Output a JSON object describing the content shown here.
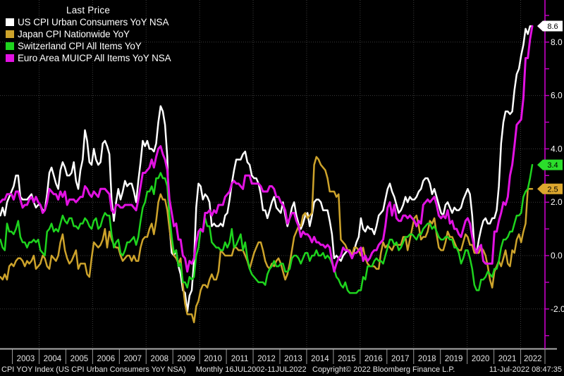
{
  "legend": {
    "title": "Last Price"
  },
  "footer": {
    "index_text": "CPI YOY Index (US CPI Urban Consumers YoY NSA)",
    "period_text": "Monthly 16JUL2002-11JUL2022",
    "copyright": "Copyright© 2022 Bloomberg Finance L.P.",
    "timestamp": "11-Jul-2022 08:47:35"
  },
  "chart_data": {
    "type": "line",
    "frequency": "monthly",
    "x_start": "2002-07",
    "x_end": "2022-06",
    "x_year_labels": [
      "2003",
      "2004",
      "2005",
      "2006",
      "2007",
      "2008",
      "2009",
      "2010",
      "2011",
      "2012",
      "2013",
      "2014",
      "2015",
      "2016",
      "2017",
      "2018",
      "2019",
      "2020",
      "2021",
      "2022"
    ],
    "y_axis": {
      "major_ticks": [
        8,
        6,
        4,
        2,
        0,
        -2
      ],
      "major_labels": [
        "8.0",
        "6.0",
        "4.0",
        "2.0",
        "0.0",
        "-2.0"
      ],
      "minor_tick_values": [
        9,
        8,
        7,
        6,
        5,
        4,
        3,
        2,
        1,
        0,
        -1,
        -2,
        -3
      ],
      "axis_color": "#C800C8",
      "label_color": "#ffffff"
    },
    "grid": {
      "on": true,
      "color": "#3c3c3c",
      "h_lines_at": [
        8,
        6,
        4,
        2,
        0,
        -2
      ],
      "v_lines_every_years": 2
    },
    "ylim": [
      -3.3,
      9.6
    ],
    "axis_badges": [
      {
        "value": 8.6,
        "label": "8.6",
        "fill": "#E212E2",
        "text_color": "#000000",
        "note": "euro-area-badge-hidden-behind-us-badge"
      },
      {
        "value": 8.6,
        "label": "8.6",
        "fill": "#FFFFFF",
        "text_color": "#000000"
      },
      {
        "value": 3.4,
        "label": "3.4",
        "fill": "#2BDD2B",
        "text_color": "#000000"
      },
      {
        "value": 2.5,
        "label": "2.5",
        "fill": "#DCA72E",
        "text_color": "#000000"
      }
    ],
    "series": [
      {
        "name": "US CPI Urban Consumers YoY NSA",
        "color": "#FFFFFF",
        "last_price": 8.6,
        "values": [
          1.5,
          1.8,
          1.5,
          2.0,
          2.2,
          2.4,
          2.6,
          3.0,
          3.0,
          2.2,
          2.1,
          2.1,
          2.1,
          2.2,
          2.3,
          2.0,
          1.8,
          1.9,
          1.9,
          1.7,
          1.7,
          2.3,
          3.1,
          3.3,
          3.0,
          2.7,
          2.5,
          3.2,
          3.5,
          3.3,
          3.0,
          3.0,
          3.1,
          3.5,
          2.8,
          2.5,
          3.2,
          3.6,
          4.7,
          4.3,
          3.5,
          3.4,
          4.0,
          3.6,
          3.4,
          3.5,
          4.2,
          4.3,
          4.1,
          3.8,
          2.1,
          1.3,
          2.0,
          2.5,
          2.1,
          2.4,
          2.8,
          2.6,
          2.7,
          2.7,
          2.4,
          2.0,
          2.8,
          3.5,
          4.3,
          4.1,
          4.3,
          4.0,
          4.0,
          3.9,
          4.2,
          5.0,
          5.6,
          5.4,
          4.9,
          3.7,
          1.1,
          0.1,
          0.0,
          0.2,
          -0.4,
          -0.7,
          -1.3,
          -1.4,
          -2.1,
          -1.5,
          -1.3,
          -0.2,
          1.8,
          2.7,
          2.6,
          2.1,
          2.3,
          2.2,
          2.0,
          1.1,
          1.2,
          1.1,
          1.1,
          1.2,
          1.1,
          1.5,
          1.6,
          2.1,
          2.7,
          3.2,
          3.6,
          3.6,
          3.6,
          3.8,
          3.9,
          3.5,
          3.4,
          3.0,
          2.9,
          2.9,
          2.7,
          2.3,
          1.7,
          1.7,
          1.4,
          1.7,
          2.0,
          2.2,
          1.8,
          1.7,
          1.6,
          2.0,
          1.5,
          1.1,
          1.4,
          1.8,
          2.0,
          1.5,
          1.2,
          1.0,
          1.2,
          1.5,
          1.6,
          1.1,
          1.5,
          2.0,
          2.1,
          2.1,
          2.0,
          1.7,
          1.7,
          1.7,
          1.3,
          0.8,
          -0.1,
          0.0,
          -0.1,
          -0.2,
          0.0,
          0.1,
          0.2,
          0.2,
          0.0,
          0.2,
          0.5,
          0.7,
          1.4,
          1.0,
          0.9,
          1.1,
          1.0,
          1.0,
          0.8,
          1.1,
          1.5,
          1.6,
          1.7,
          2.1,
          2.5,
          2.7,
          2.4,
          2.2,
          1.9,
          1.6,
          1.7,
          1.9,
          2.2,
          2.0,
          2.2,
          2.1,
          2.1,
          2.2,
          2.4,
          2.5,
          2.8,
          2.9,
          2.9,
          2.7,
          2.3,
          2.5,
          2.2,
          1.9,
          1.6,
          1.5,
          1.9,
          2.0,
          1.8,
          1.6,
          1.8,
          1.7,
          1.7,
          1.8,
          2.1,
          2.3,
          2.5,
          2.3,
          1.5,
          0.3,
          0.1,
          0.6,
          1.0,
          1.3,
          1.4,
          1.2,
          1.2,
          1.4,
          1.4,
          1.7,
          2.6,
          4.2,
          5.0,
          5.4,
          5.4,
          5.3,
          5.4,
          6.2,
          6.8,
          7.0,
          7.5,
          7.9,
          8.5,
          8.3,
          8.6,
          8.6
        ]
      },
      {
        "name": "Japan CPI Nationwide YoY",
        "color": "#CDA32B",
        "last_price": 2.5,
        "values": [
          -0.8,
          -0.9,
          -0.7,
          -0.9,
          -0.4,
          -0.3,
          -0.4,
          -0.2,
          -0.1,
          -0.1,
          -0.2,
          -0.4,
          -0.2,
          -0.3,
          -0.2,
          0.0,
          -0.5,
          -0.4,
          -0.3,
          0.0,
          -0.1,
          -0.4,
          -0.5,
          0.0,
          -0.1,
          -0.2,
          0.0,
          0.5,
          0.8,
          0.2,
          -0.1,
          -0.3,
          -0.2,
          0.0,
          0.2,
          -0.5,
          -0.3,
          -0.3,
          -0.3,
          -0.7,
          -0.8,
          -0.1,
          0.5,
          0.4,
          0.3,
          0.4,
          0.6,
          1.0,
          0.3,
          0.9,
          0.6,
          0.4,
          0.3,
          0.3,
          0.0,
          -0.2,
          -0.1,
          0.0,
          0.0,
          -0.2,
          0.0,
          -0.2,
          -0.2,
          0.3,
          0.6,
          0.7,
          0.7,
          1.0,
          1.2,
          0.8,
          1.3,
          2.0,
          2.3,
          2.1,
          2.1,
          1.7,
          1.0,
          0.4,
          0.0,
          -0.1,
          -0.3,
          -0.1,
          -1.1,
          -1.8,
          -2.2,
          -2.2,
          -2.2,
          -2.5,
          -1.9,
          -1.7,
          -1.3,
          -1.1,
          -1.1,
          -1.2,
          -0.9,
          -0.7,
          -0.9,
          -0.9,
          -0.6,
          0.2,
          0.1,
          0.0,
          0.0,
          0.0,
          0.0,
          0.3,
          0.3,
          0.2,
          0.2,
          0.2,
          0.0,
          -0.2,
          -0.5,
          -0.2,
          0.1,
          0.3,
          0.5,
          0.5,
          0.2,
          -0.2,
          -0.4,
          -0.5,
          -0.3,
          -0.4,
          -0.2,
          -0.1,
          -0.3,
          -0.6,
          -0.9,
          -0.7,
          -0.3,
          0.2,
          0.7,
          0.9,
          1.1,
          1.1,
          1.5,
          1.6,
          1.4,
          1.5,
          1.6,
          3.4,
          3.7,
          3.6,
          3.4,
          3.3,
          3.2,
          2.9,
          2.4,
          2.4,
          2.4,
          2.2,
          2.3,
          0.6,
          0.5,
          0.4,
          0.2,
          0.2,
          0.0,
          0.3,
          0.3,
          0.2,
          0.0,
          0.3,
          -0.1,
          -0.3,
          -0.4,
          -0.4,
          -0.4,
          -0.5,
          -0.5,
          0.1,
          0.5,
          0.3,
          0.4,
          0.3,
          0.2,
          0.4,
          0.4,
          0.4,
          0.4,
          0.7,
          0.7,
          0.2,
          0.6,
          1.0,
          1.4,
          1.5,
          1.1,
          0.6,
          0.7,
          0.7,
          0.9,
          1.3,
          1.2,
          1.4,
          0.8,
          0.3,
          0.2,
          0.2,
          0.5,
          0.9,
          0.7,
          0.7,
          0.5,
          0.3,
          0.2,
          0.2,
          0.5,
          0.8,
          0.7,
          0.4,
          0.4,
          0.1,
          0.1,
          0.1,
          0.3,
          0.2,
          0.0,
          -0.4,
          -0.9,
          -1.2,
          -0.6,
          -0.4,
          -0.2,
          -0.4,
          -0.1,
          0.2,
          -0.3,
          -0.4,
          0.2,
          0.1,
          0.6,
          0.8,
          0.5,
          0.9,
          1.2,
          2.5,
          2.5,
          2.5
        ]
      },
      {
        "name": "Switzerland CPI All Items YoY",
        "color": "#1ED41E",
        "last_price": 3.4,
        "values": [
          0.6,
          0.3,
          0.2,
          1.2,
          0.9,
          0.9,
          0.8,
          1.0,
          1.3,
          0.7,
          0.5,
          0.5,
          0.3,
          0.5,
          0.5,
          0.6,
          0.5,
          0.6,
          0.2,
          0.1,
          0.0,
          0.9,
          1.0,
          1.2,
          0.9,
          1.0,
          0.9,
          1.2,
          1.5,
          1.3,
          1.2,
          1.4,
          1.4,
          1.1,
          1.1,
          1.0,
          1.2,
          1.2,
          1.4,
          1.3,
          1.1,
          1.0,
          1.3,
          1.4,
          1.0,
          1.1,
          1.4,
          1.6,
          1.5,
          1.5,
          0.8,
          0.3,
          0.5,
          0.6,
          0.1,
          0.0,
          0.2,
          0.5,
          0.5,
          0.6,
          0.7,
          0.4,
          0.7,
          1.3,
          1.8,
          2.0,
          2.4,
          2.4,
          2.6,
          2.3,
          2.9,
          2.9,
          3.1,
          2.9,
          2.9,
          2.6,
          1.5,
          0.7,
          0.1,
          0.2,
          -0.4,
          -0.3,
          -1.0,
          -1.0,
          -1.2,
          -0.8,
          -0.9,
          -0.8,
          0.0,
          0.3,
          1.0,
          0.9,
          1.4,
          1.1,
          1.1,
          0.5,
          0.4,
          0.3,
          0.3,
          0.2,
          0.2,
          0.5,
          0.3,
          0.5,
          1.0,
          0.3,
          0.4,
          0.6,
          0.8,
          0.2,
          0.5,
          -0.1,
          -0.5,
          -0.7,
          -0.8,
          -0.9,
          -1.0,
          -1.0,
          -1.0,
          -1.1,
          -0.7,
          -0.5,
          -0.4,
          -0.2,
          -0.4,
          -0.4,
          -0.3,
          -0.3,
          -0.6,
          -0.6,
          -0.5,
          -0.1,
          0.0,
          0.0,
          -0.1,
          -0.3,
          -0.1,
          0.1,
          0.1,
          -0.2,
          0.0,
          0.0,
          0.2,
          0.0,
          0.0,
          0.1,
          -0.1,
          0.0,
          -0.1,
          -0.3,
          -0.5,
          -0.8,
          -0.9,
          -1.1,
          -1.2,
          -1.0,
          -1.3,
          -1.4,
          -1.4,
          -1.4,
          -1.4,
          -1.3,
          -1.3,
          -0.8,
          -0.9,
          -0.4,
          -0.4,
          -0.4,
          -0.2,
          -0.1,
          -0.2,
          -0.2,
          -0.3,
          0.0,
          0.3,
          0.6,
          0.6,
          0.4,
          0.5,
          0.2,
          0.3,
          0.5,
          0.7,
          0.7,
          0.8,
          0.8,
          0.7,
          0.6,
          0.8,
          0.8,
          1.0,
          1.1,
          1.2,
          1.2,
          1.0,
          1.1,
          0.9,
          0.7,
          0.6,
          0.6,
          0.7,
          0.7,
          0.6,
          0.6,
          0.3,
          0.3,
          0.1,
          -0.3,
          -0.1,
          0.2,
          0.2,
          -0.1,
          -0.5,
          -1.1,
          -1.3,
          -1.3,
          -0.9,
          -0.9,
          -0.8,
          -0.6,
          -0.7,
          -0.8,
          -0.5,
          -0.5,
          -0.2,
          0.3,
          0.6,
          0.6,
          0.7,
          0.9,
          0.9,
          1.2,
          1.5,
          1.5,
          1.6,
          2.2,
          2.4,
          2.5,
          2.9,
          3.4
        ]
      },
      {
        "name": "Euro Area MUICP All Items YoY NSA",
        "color": "#E212E2",
        "last_price": 8.6,
        "values": [
          2.0,
          2.1,
          2.1,
          2.3,
          2.3,
          2.3,
          2.1,
          2.4,
          2.4,
          2.1,
          1.8,
          1.9,
          1.9,
          2.1,
          2.2,
          2.0,
          2.2,
          2.0,
          1.9,
          1.6,
          1.7,
          2.0,
          2.5,
          2.4,
          2.3,
          2.3,
          2.1,
          2.4,
          2.2,
          2.4,
          1.9,
          2.1,
          2.1,
          2.1,
          2.0,
          2.1,
          2.2,
          2.2,
          2.6,
          2.5,
          2.3,
          2.2,
          2.4,
          2.3,
          2.2,
          2.5,
          2.5,
          2.5,
          2.4,
          2.3,
          1.7,
          1.6,
          1.9,
          1.9,
          1.8,
          1.8,
          1.9,
          1.9,
          1.9,
          1.9,
          1.8,
          1.7,
          2.1,
          2.6,
          3.1,
          3.1,
          3.2,
          3.3,
          3.6,
          3.3,
          3.7,
          4.0,
          4.1,
          3.8,
          3.6,
          3.2,
          2.1,
          1.6,
          1.1,
          1.2,
          0.6,
          0.6,
          0.0,
          -0.1,
          -0.6,
          -0.2,
          -0.3,
          -0.1,
          0.5,
          0.9,
          1.0,
          0.9,
          1.6,
          1.6,
          1.7,
          1.5,
          1.7,
          1.6,
          1.9,
          1.9,
          1.9,
          2.2,
          2.3,
          2.4,
          2.7,
          2.8,
          2.7,
          2.7,
          2.6,
          2.5,
          3.0,
          3.0,
          3.0,
          2.7,
          2.7,
          2.7,
          2.7,
          2.6,
          2.4,
          2.4,
          2.4,
          2.6,
          2.6,
          2.5,
          2.2,
          2.2,
          2.0,
          1.9,
          1.7,
          1.2,
          1.4,
          1.6,
          1.6,
          1.3,
          1.1,
          0.7,
          0.9,
          0.8,
          0.8,
          0.7,
          0.5,
          0.7,
          0.5,
          0.5,
          0.4,
          0.4,
          0.3,
          0.4,
          0.3,
          -0.2,
          -0.6,
          -0.3,
          -0.1,
          0.0,
          0.3,
          0.2,
          0.2,
          0.1,
          -0.1,
          0.1,
          0.1,
          0.2,
          0.3,
          -0.2,
          0.0,
          -0.2,
          -0.1,
          0.1,
          0.2,
          0.2,
          0.4,
          0.5,
          0.6,
          1.1,
          1.8,
          2.0,
          1.5,
          1.9,
          1.4,
          1.3,
          1.3,
          1.5,
          1.5,
          1.4,
          1.5,
          1.4,
          1.3,
          1.1,
          1.3,
          1.2,
          1.9,
          2.0,
          2.1,
          2.0,
          2.1,
          2.2,
          1.9,
          1.5,
          1.4,
          1.5,
          1.4,
          1.7,
          1.2,
          1.3,
          1.0,
          1.0,
          0.8,
          0.7,
          1.0,
          1.3,
          1.4,
          1.2,
          0.7,
          0.3,
          0.1,
          0.3,
          0.4,
          -0.2,
          -0.3,
          -0.3,
          -0.3,
          -0.3,
          0.9,
          0.9,
          1.3,
          1.6,
          2.0,
          1.9,
          2.2,
          3.0,
          3.4,
          4.1,
          4.9,
          5.0,
          5.1,
          5.9,
          7.4,
          7.4,
          8.1,
          8.6
        ]
      }
    ]
  }
}
